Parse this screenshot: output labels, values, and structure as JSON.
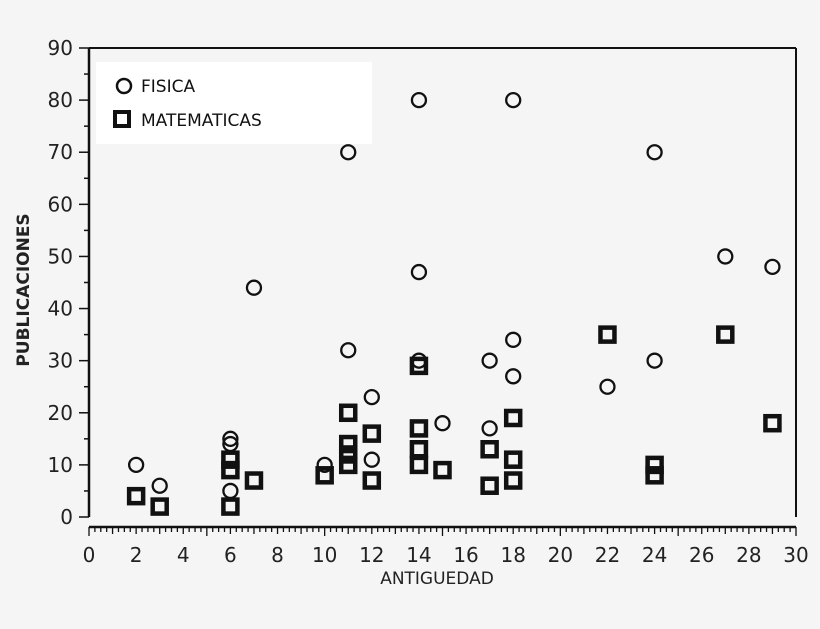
{
  "chart_data": {
    "type": "scatter",
    "title": "",
    "xlabel": "ANTIGUEDAD",
    "ylabel": "PUBLICACIONES",
    "xlim": [
      0,
      30
    ],
    "ylim": [
      0,
      90
    ],
    "x_ticks": [
      0,
      2,
      4,
      6,
      8,
      10,
      12,
      14,
      16,
      18,
      20,
      22,
      24,
      26,
      28,
      30
    ],
    "y_ticks": [
      0,
      10,
      20,
      30,
      40,
      50,
      60,
      70,
      80,
      90
    ],
    "grid": false,
    "legend_position": "top-left",
    "series": [
      {
        "name": "FISICA",
        "marker": "open-circle",
        "points": [
          [
            2,
            10
          ],
          [
            3,
            6
          ],
          [
            6,
            15
          ],
          [
            6,
            14
          ],
          [
            6,
            5
          ],
          [
            7,
            44
          ],
          [
            10,
            10
          ],
          [
            11,
            70
          ],
          [
            11,
            32
          ],
          [
            12,
            23
          ],
          [
            12,
            11
          ],
          [
            14,
            80
          ],
          [
            14,
            47
          ],
          [
            14,
            30
          ],
          [
            15,
            18
          ],
          [
            17,
            30
          ],
          [
            17,
            17
          ],
          [
            18,
            80
          ],
          [
            18,
            34
          ],
          [
            18,
            27
          ],
          [
            22,
            25
          ],
          [
            24,
            70
          ],
          [
            24,
            30
          ],
          [
            27,
            50
          ],
          [
            29,
            48
          ]
        ]
      },
      {
        "name": "MATEMATICAS",
        "marker": "open-square",
        "points": [
          [
            2,
            4
          ],
          [
            3,
            2
          ],
          [
            6,
            11
          ],
          [
            6,
            9
          ],
          [
            6,
            2
          ],
          [
            7,
            7
          ],
          [
            10,
            8
          ],
          [
            11,
            20
          ],
          [
            11,
            14
          ],
          [
            11,
            12
          ],
          [
            11,
            10
          ],
          [
            12,
            16
          ],
          [
            12,
            7
          ],
          [
            14,
            29
          ],
          [
            14,
            17
          ],
          [
            14,
            13
          ],
          [
            14,
            10
          ],
          [
            15,
            9
          ],
          [
            17,
            13
          ],
          [
            17,
            6
          ],
          [
            18,
            19
          ],
          [
            18,
            11
          ],
          [
            18,
            7
          ],
          [
            22,
            35
          ],
          [
            24,
            10
          ],
          [
            24,
            8
          ],
          [
            27,
            35
          ],
          [
            29,
            18
          ]
        ]
      }
    ]
  },
  "legend": {
    "items": [
      {
        "label": "FISICA",
        "marker": "open-circle"
      },
      {
        "label": "MATEMATICAS",
        "marker": "open-square"
      }
    ]
  },
  "colors": {
    "background": "#f5f5f5",
    "ink": "#111111",
    "legend_bg": "#ffffff"
  }
}
